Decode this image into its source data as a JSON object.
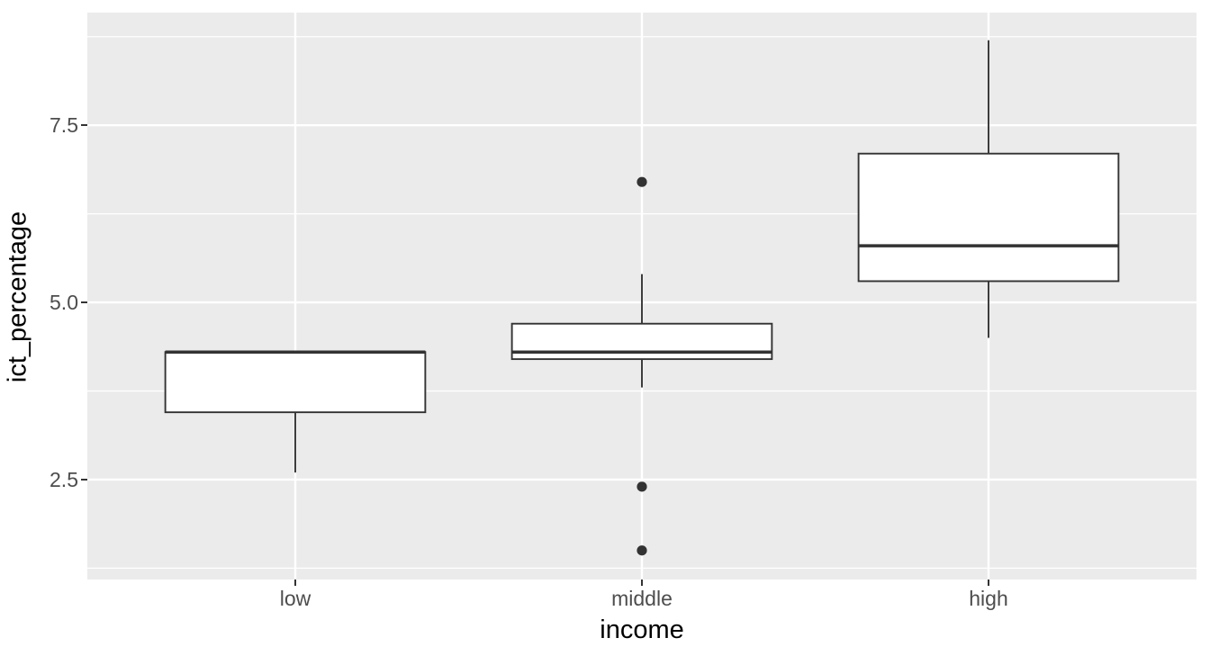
{
  "figure": {
    "background": "#FFFFFF",
    "panel_background": "#EBEBEB",
    "grid_color": "#FFFFFF",
    "box_fill": "#FFFFFF",
    "box_stroke": "#333333",
    "outlier_color": "#333333",
    "tick_mark_color": "#333333",
    "axis_text_color": "#4D4D4D",
    "axis_title_color": "#000000"
  },
  "chart_data": {
    "type": "boxplot",
    "title": "",
    "xlabel": "income",
    "ylabel": "ict_percentage",
    "categories": [
      "low",
      "middle",
      "high"
    ],
    "ylim": [
      1.09,
      9.09
    ],
    "y_major_ticks": [
      2.5,
      5.0,
      7.5
    ],
    "y_tick_labels": [
      "2.5",
      "5.0",
      "7.5"
    ],
    "y_minor_ticks": [
      1.25,
      3.75,
      6.25,
      8.75
    ],
    "grid": true,
    "legend_position": "none",
    "series": [
      {
        "category": "low",
        "min": 2.6,
        "q1": 3.45,
        "median": 4.3,
        "q3": 4.3,
        "max": 4.3,
        "outliers": []
      },
      {
        "category": "middle",
        "min": 3.8,
        "q1": 4.2,
        "median": 4.3,
        "q3": 4.7,
        "max": 5.4,
        "outliers": [
          6.7,
          2.4,
          1.5
        ]
      },
      {
        "category": "high",
        "min": 4.5,
        "q1": 5.3,
        "median": 5.8,
        "q3": 7.1,
        "max": 8.7,
        "outliers": []
      }
    ]
  }
}
